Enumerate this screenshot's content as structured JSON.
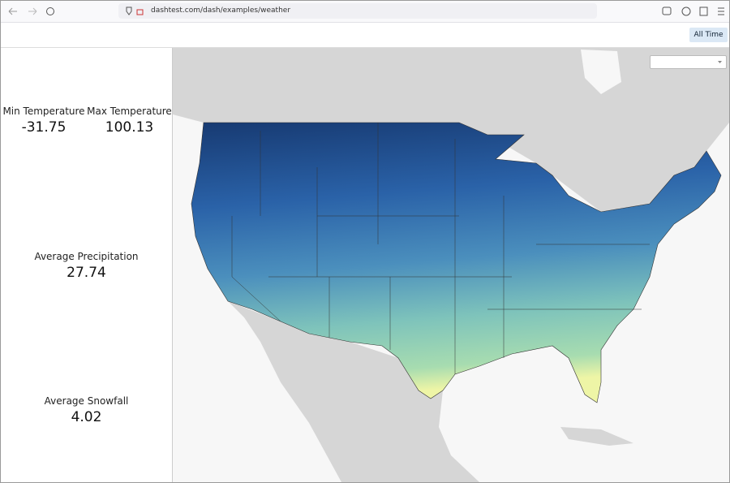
{
  "browser": {
    "url": "dashtest.com/dash/examples/weather"
  },
  "toolbar": {
    "button": "All Time"
  },
  "stats": [
    {
      "label": "Min Temperature",
      "value": "-31.75"
    },
    {
      "label": "Max Temperature",
      "value": "100.13"
    },
    {
      "label": "Average Precipitation",
      "value": "27.74"
    },
    {
      "label": "Average Snowfall",
      "value": "4.02"
    }
  ]
}
